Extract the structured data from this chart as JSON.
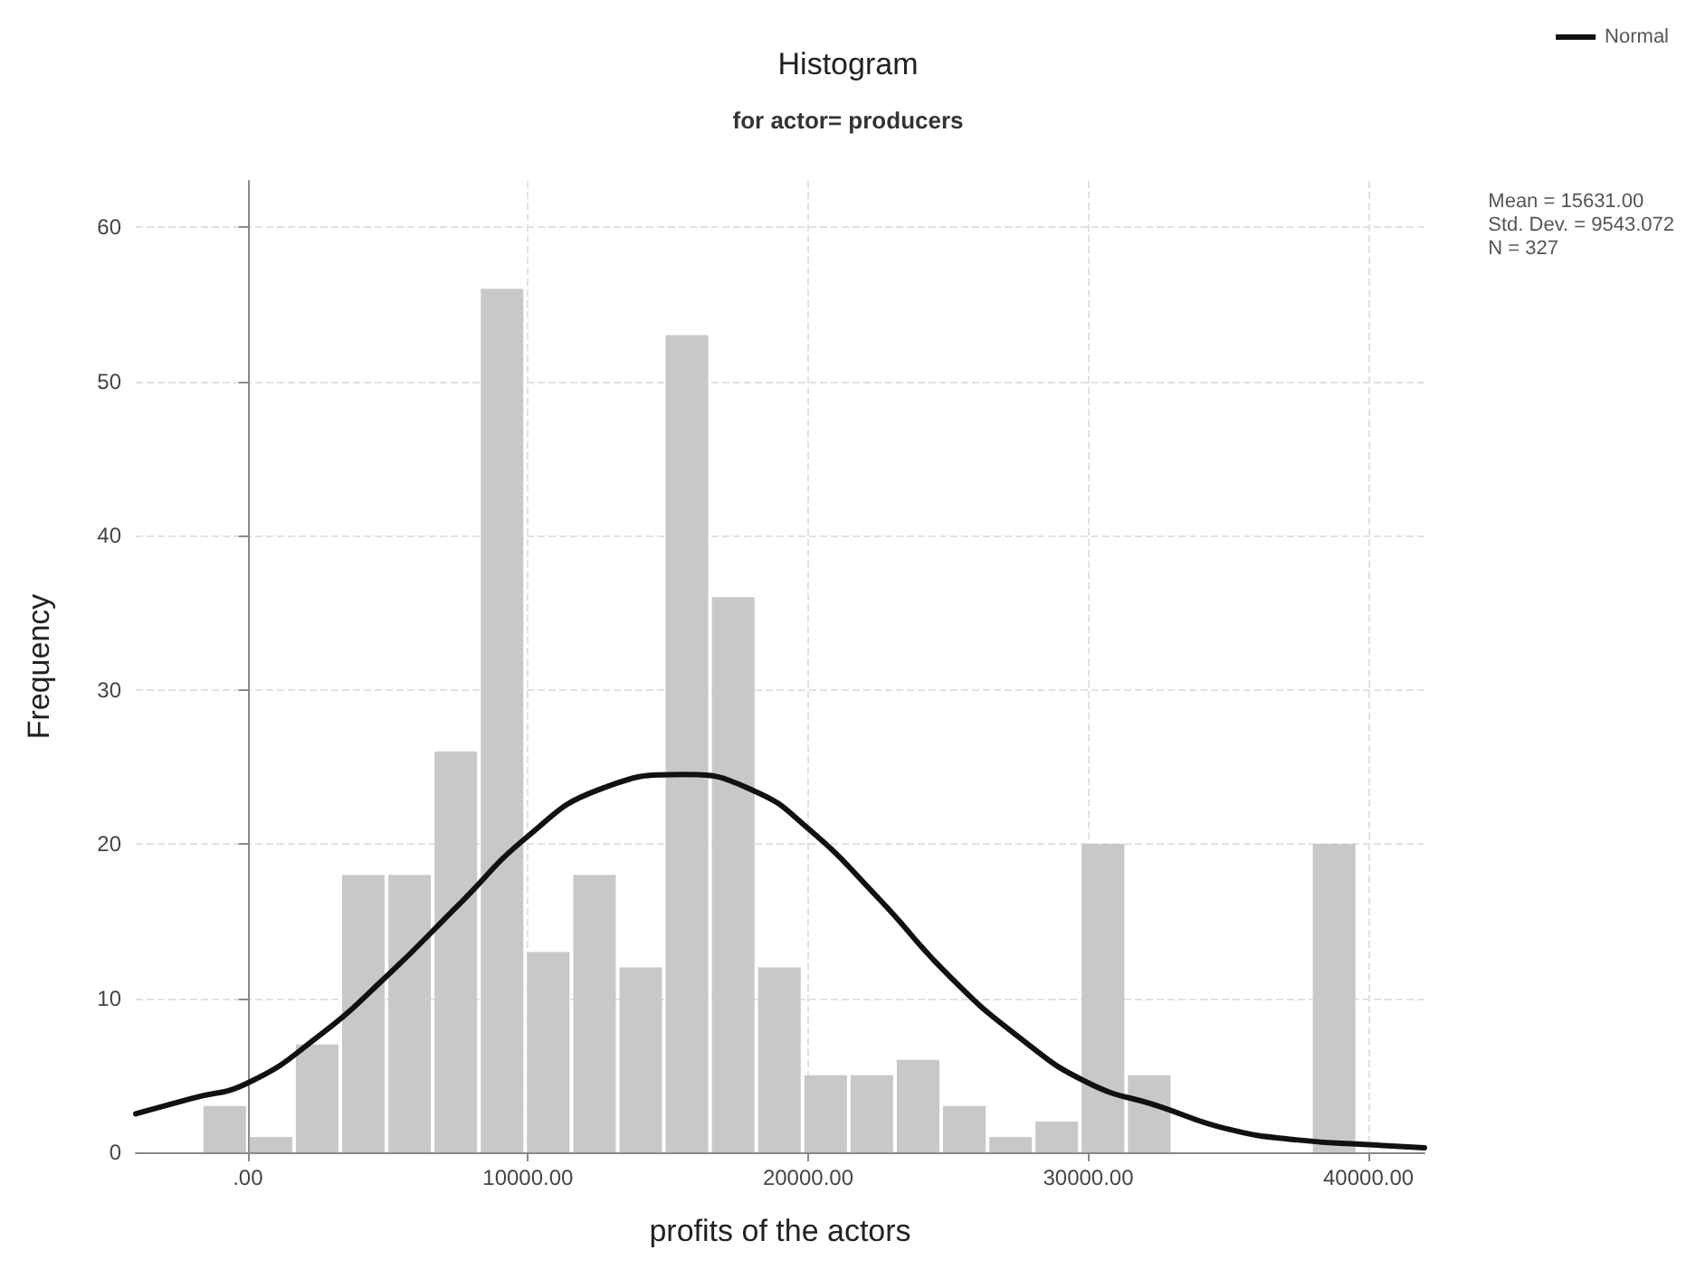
{
  "chart_data": {
    "type": "histogram",
    "title": "Histogram",
    "subtitle": "for actor= producers",
    "xlabel": "profits of the actors",
    "ylabel": "Frequency",
    "bins": [
      -1650,
      0,
      1650,
      3300,
      4950,
      6600,
      8250,
      9900,
      11550,
      13200,
      14850,
      16500,
      18150,
      19800,
      21450,
      23100,
      24750,
      26400,
      28050,
      29700,
      31350,
      33000,
      34650,
      36300,
      37950,
      39600
    ],
    "values": [
      3,
      1,
      7,
      18,
      18,
      26,
      56,
      13,
      18,
      12,
      53,
      36,
      12,
      5,
      5,
      6,
      3,
      1,
      2,
      20,
      5,
      0,
      0,
      0,
      20
    ],
    "color": "#c8c8c8",
    "series": [
      {
        "name": "Normal",
        "type": "line",
        "color": "#111111",
        "x": [
          -4000,
          -2000,
          0,
          2500,
          5000,
          7500,
          10000,
          12500,
          15600,
          18000,
          20000,
          22500,
          25000,
          27500,
          30000,
          32500,
          35000,
          37500,
          40000,
          42000
        ],
        "values": [
          2.5,
          3.5,
          4.5,
          7.5,
          11.5,
          16,
          20.5,
          23.5,
          24.5,
          23.5,
          21,
          16.5,
          11.5,
          7.5,
          4.5,
          3,
          1.5,
          0.8,
          0.5,
          0.3
        ]
      }
    ],
    "xlim": [
      -4000,
      42000
    ],
    "xticks": [
      {
        "value": 0,
        "label": ".00"
      },
      {
        "value": 10000,
        "label": "10000.00"
      },
      {
        "value": 20000,
        "label": "20000.00"
      },
      {
        "value": 30000,
        "label": "30000.00"
      },
      {
        "value": 40000,
        "label": "40000.00"
      }
    ],
    "ylim": [
      0,
      63
    ],
    "yticks": [
      0,
      10,
      20,
      30,
      40,
      50,
      60
    ],
    "grid": true,
    "legend": "top right",
    "marker": "none",
    "line_style": "solid",
    "annotations": [
      "Mean = 15631.00",
      "Std. Dev. = 9543.072",
      "N = 327"
    ]
  }
}
